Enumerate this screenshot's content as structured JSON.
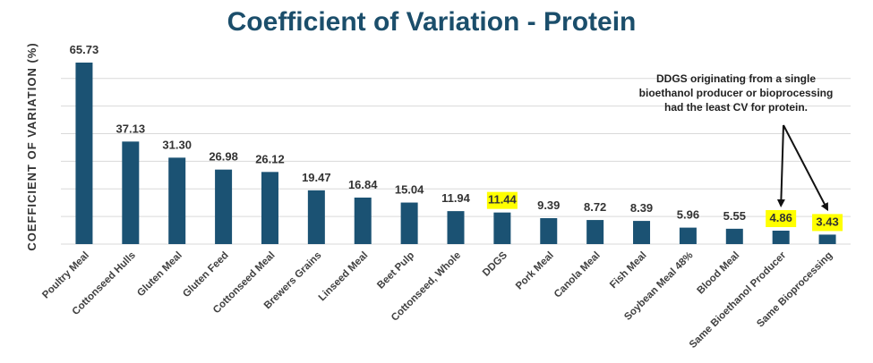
{
  "chart_data": {
    "type": "bar",
    "title": "Coefficient of Variation - Protein",
    "xlabel": "",
    "ylabel": "COEFFICIENT OF VARIATION (%)",
    "ylim": [
      0,
      70
    ],
    "grid": true,
    "categories": [
      "Poultry Meal",
      "Cottonseed Hulls",
      "Gluten Meal",
      "Gluten Feed",
      "Cottonseed Meal",
      "Brewers Grains",
      "Linseed Meal",
      "Beet Pulp",
      "Cottonseed, Whole",
      "DDGS",
      "Pork Meal",
      "Canola Meal",
      "Fish Meal",
      "Soybean Meal 48%",
      "Blood Meal",
      "Same Bioethanol Producer",
      "Same Bioprocessing"
    ],
    "values": [
      65.73,
      37.13,
      31.3,
      26.98,
      26.12,
      19.47,
      16.84,
      15.04,
      11.94,
      11.44,
      9.39,
      8.72,
      8.39,
      5.96,
      5.55,
      4.86,
      3.43
    ],
    "value_labels": [
      "65.73",
      "37.13",
      "31.30",
      "26.98",
      "26.12",
      "19.47",
      "16.84",
      "15.04",
      "11.94",
      "11.44",
      "9.39",
      "8.72",
      "8.39",
      "5.96",
      "5.55",
      "4.86",
      "3.43"
    ],
    "highlighted": [
      "DDGS",
      "Same Bioethanol Producer",
      "Same Bioprocessing"
    ],
    "annotation": {
      "lines": [
        "DDGS originating from a single",
        "bioethanol producer or bioprocessing",
        "had the least CV for protein."
      ],
      "arrows_to": [
        "Same Bioethanol Producer",
        "Same Bioprocessing"
      ]
    },
    "colors": {
      "bar": "#1b5273",
      "highlight": "#ffff00",
      "title": "#1b4e6b",
      "text": "#333333"
    }
  }
}
